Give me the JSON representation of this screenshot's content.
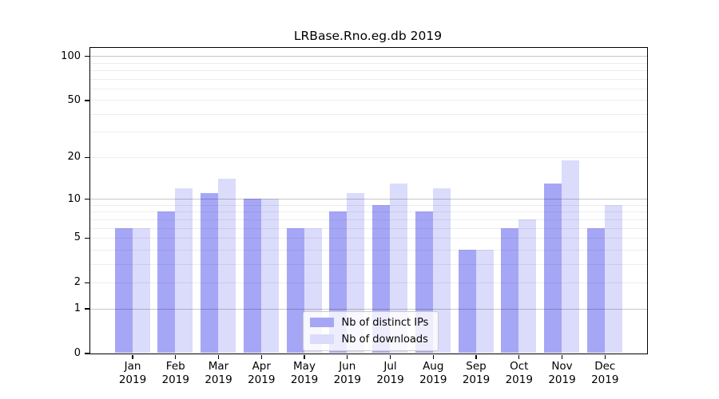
{
  "figure": {
    "title": "LRBase.Rno.eg.db 2019"
  },
  "chart_data": {
    "type": "bar",
    "title": "LRBase.Rno.eg.db 2019",
    "categories": [
      "Jan 2019",
      "Feb 2019",
      "Mar 2019",
      "Apr 2019",
      "May 2019",
      "Jun 2019",
      "Jul 2019",
      "Aug 2019",
      "Sep 2019",
      "Oct 2019",
      "Nov 2019",
      "Dec 2019"
    ],
    "series": [
      {
        "name": "Nb of distinct IPs",
        "color": "#a6a6f7",
        "values": [
          6,
          8,
          11,
          10,
          6,
          8,
          9,
          8,
          4,
          6,
          13,
          6
        ]
      },
      {
        "name": "Nb of downloads",
        "color": "#dbdbfb",
        "values": [
          6,
          12,
          14,
          10,
          6,
          11,
          13,
          12,
          4,
          7,
          19,
          9
        ]
      }
    ],
    "xlabel": "",
    "ylabel": "",
    "yscale": "log1p",
    "ylim": [
      0,
      114
    ],
    "yticks": [
      100,
      50,
      20,
      10,
      5,
      2,
      1,
      0
    ],
    "major_gridlines": [
      1,
      10,
      100
    ],
    "minor_gridlines": [
      2,
      3,
      4,
      5,
      6,
      7,
      8,
      9,
      20,
      30,
      40,
      50,
      60,
      70,
      80,
      90
    ],
    "grid": true,
    "legend_position": "lower center"
  },
  "legend": {
    "items": [
      "Nb of distinct IPs",
      "Nb of downloads"
    ]
  },
  "axis_colors": {
    "spine": "#000000",
    "major_grid": "#c7c7c7",
    "minor_grid": "#ededed"
  }
}
